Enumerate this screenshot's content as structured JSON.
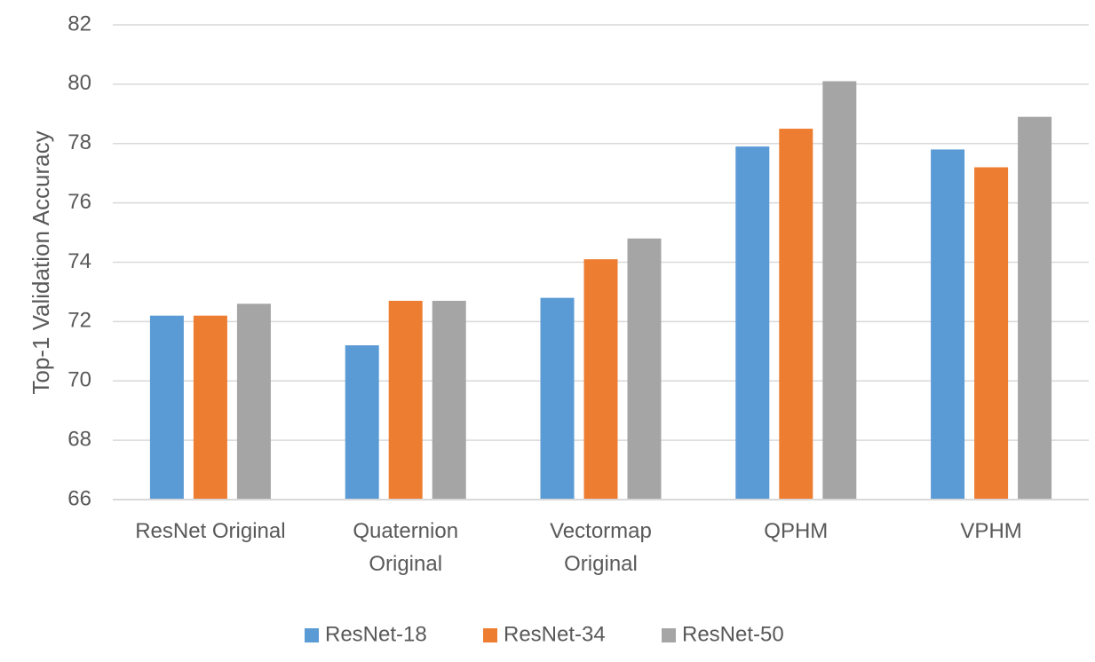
{
  "chart_data": {
    "type": "bar",
    "title": "",
    "xlabel": "",
    "ylabel": "Top-1 Validation Accuracy",
    "ylim": [
      66,
      82
    ],
    "yticks": [
      66,
      68,
      70,
      72,
      74,
      76,
      78,
      80,
      82
    ],
    "grid": true,
    "legend_position": "bottom",
    "categories": [
      [
        "ResNet Original"
      ],
      [
        "Quaternion",
        "Original"
      ],
      [
        "Vectormap",
        "Original"
      ],
      [
        "QPHM"
      ],
      [
        "VPHM"
      ]
    ],
    "series": [
      {
        "name": "ResNet-18",
        "color": "#5b9bd5",
        "values": [
          72.2,
          71.2,
          72.8,
          77.9,
          77.8
        ]
      },
      {
        "name": "ResNet-34",
        "color": "#ed7d31",
        "values": [
          72.2,
          72.7,
          74.1,
          78.5,
          77.2
        ]
      },
      {
        "name": "ResNet-50",
        "color": "#a5a5a5",
        "values": [
          72.6,
          72.7,
          74.8,
          80.1,
          78.9
        ]
      }
    ]
  }
}
